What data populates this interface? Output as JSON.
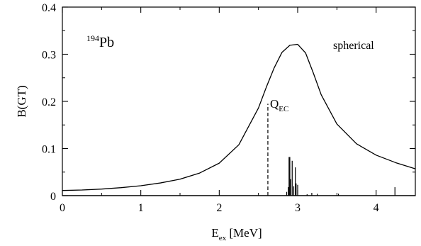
{
  "chart_data": {
    "type": "line",
    "title": "",
    "xlabel": {
      "main": "E",
      "sub": "ex",
      "unit": " [MeV]"
    },
    "ylabel": "B(GT)",
    "xlim": [
      0,
      4.5
    ],
    "ylim": [
      0,
      0.4
    ],
    "x_ticks": [
      0,
      1,
      2,
      3,
      4
    ],
    "x_tick_labels": [
      "0",
      "1",
      "2",
      "3",
      "4"
    ],
    "y_ticks": [
      0,
      0.1,
      0.2,
      0.3,
      0.4
    ],
    "y_tick_labels": [
      "0",
      "0.1",
      "0.2",
      "0.3",
      "0.4"
    ],
    "x_minor_step": 0.5,
    "y_minor_step": 0.05,
    "grid": false,
    "legend": "none",
    "annotations": {
      "nucleus": {
        "mass": "194",
        "symbol": "Pb"
      },
      "shape": "spherical",
      "qec": {
        "main": "Q",
        "sub": "EC",
        "x": 2.62,
        "y_top": 0.195
      }
    },
    "series": [
      {
        "style": "solid",
        "x": [
          0.0,
          0.25,
          0.5,
          0.75,
          1.0,
          1.25,
          1.5,
          1.75,
          2.0,
          2.25,
          2.5,
          2.6,
          2.7,
          2.8,
          2.9,
          3.0,
          3.1,
          3.2,
          3.3,
          3.5,
          3.75,
          4.0,
          4.25,
          4.5
        ],
        "y": [
          0.011,
          0.012,
          0.014,
          0.017,
          0.021,
          0.027,
          0.035,
          0.048,
          0.069,
          0.108,
          0.186,
          0.23,
          0.271,
          0.304,
          0.319,
          0.321,
          0.303,
          0.26,
          0.214,
          0.152,
          0.11,
          0.086,
          0.07,
          0.057
        ]
      }
    ],
    "strength_lines": {
      "x": [
        2.86,
        2.88,
        2.89,
        2.9,
        2.91,
        2.93,
        2.95,
        2.97,
        2.98,
        3.0,
        3.12,
        3.18,
        3.25,
        3.52,
        4.24
      ],
      "y": [
        0.008,
        0.018,
        0.082,
        0.082,
        0.035,
        0.074,
        0.02,
        0.06,
        0.026,
        0.023,
        0.003,
        0.006,
        0.004,
        0.004,
        0.018
      ]
    }
  }
}
